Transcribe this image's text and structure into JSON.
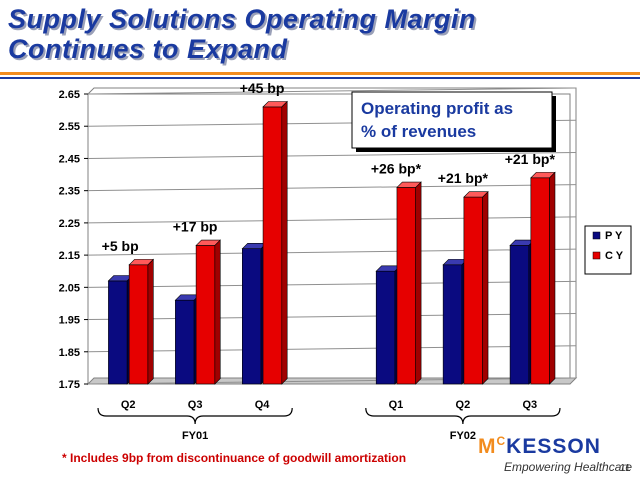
{
  "slide": {
    "title_line1": "Supply Solutions Operating Margin",
    "title_line2": "Continues to Expand",
    "footnote": "* Includes 9bp from discontinuance of goodwill amortization",
    "logo_name": "McKESSON",
    "logo_tagline": "Empowering Healthcare",
    "page_number": "11",
    "accent_orange": "#f28c1e",
    "accent_blue": "#1a3aa0"
  },
  "chart_data": {
    "type": "bar",
    "annotation": "Operating profit as % of revenues",
    "categories": [
      "Q2",
      "Q3",
      "Q4",
      "Q1",
      "Q2",
      "Q3"
    ],
    "groups": [
      {
        "label": "FY01",
        "categories": [
          0,
          1,
          2
        ]
      },
      {
        "label": "FY02",
        "categories": [
          3,
          4,
          5
        ]
      }
    ],
    "series": [
      {
        "name": "PY",
        "color": "#0a0a80",
        "values": [
          2.07,
          2.01,
          2.17,
          2.1,
          2.12,
          2.18
        ]
      },
      {
        "name": "CY",
        "color": "#e60000",
        "values": [
          2.12,
          2.18,
          2.61,
          2.36,
          2.33,
          2.39
        ]
      }
    ],
    "data_labels": [
      "+5 bp",
      "+17 bp",
      "+45 bp",
      "+26 bp*",
      "+21 bp*",
      "+21 bp*"
    ],
    "ylim": [
      1.75,
      2.65
    ],
    "yticks": [
      "1.75",
      "1.85",
      "1.95",
      "2.05",
      "2.15",
      "2.25",
      "2.35",
      "2.45",
      "2.55",
      "2.65"
    ],
    "grid": true,
    "legend": "right"
  }
}
